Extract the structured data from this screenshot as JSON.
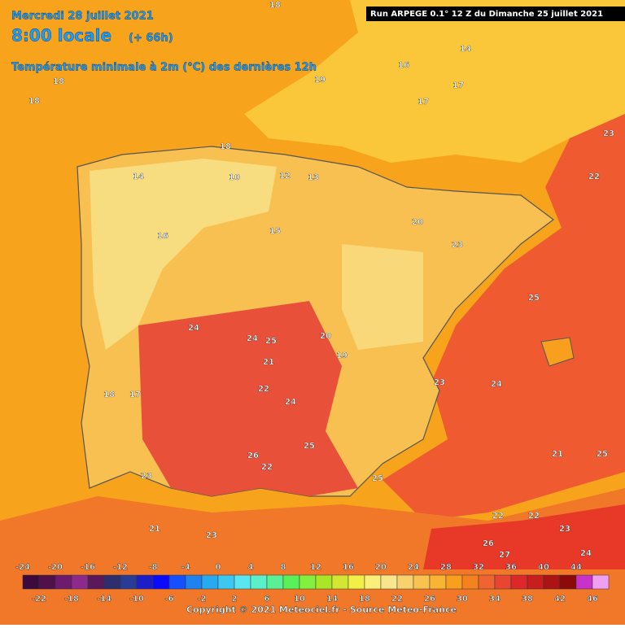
{
  "header": {
    "date": "Mercredi 28 juillet 2021",
    "time": "8:00 locale",
    "lead": "(+ 66h)",
    "parameter": "Température minimale à 2m (°C) des dernières 12h",
    "run": "Run ARPEGE 0.1° 12 Z du Dimanche 25 juillet 2021"
  },
  "map_labels": [
    "18",
    "18",
    "18",
    "19",
    "17",
    "14",
    "16",
    "17",
    "18",
    "14",
    "10",
    "13",
    "15",
    "12",
    "16",
    "20",
    "23",
    "23",
    "25",
    "22",
    "24",
    "24",
    "25",
    "21",
    "20",
    "19",
    "26",
    "23",
    "24",
    "25",
    "22",
    "18",
    "17",
    "21",
    "22",
    "23",
    "24",
    "22",
    "25",
    "21",
    "22",
    "23",
    "26",
    "24",
    "25",
    "27",
    "23"
  ],
  "colorbar": {
    "colors": [
      "#3c0a3c",
      "#50104a",
      "#6e1a6e",
      "#8c2a8c",
      "#5a1a5a",
      "#2e2e6e",
      "#283c96",
      "#1e1ec8",
      "#0a0aff",
      "#1450ff",
      "#1e82f0",
      "#28aaf0",
      "#3cc8f0",
      "#5ae6f0",
      "#5af0c8",
      "#5af096",
      "#5af05a",
      "#82f03c",
      "#aae628",
      "#d2e632",
      "#f0f046",
      "#f8f078",
      "#f8e68c",
      "#f8d26e",
      "#f8c350",
      "#f8b432",
      "#f8a01e",
      "#f5821e",
      "#f06432",
      "#e84632",
      "#dc2828",
      "#c81e1e",
      "#aa1414",
      "#8c0a0a",
      "#c832c8",
      "#f0a0f0"
    ],
    "start": -24,
    "step": 2,
    "top_labels": [
      -24,
      -20,
      -16,
      -12,
      -8,
      -4,
      0,
      4,
      8,
      12,
      16,
      20,
      24,
      28,
      32,
      36,
      40,
      44
    ],
    "bottom_labels": [
      -22,
      -18,
      -14,
      -10,
      -6,
      -2,
      2,
      6,
      10,
      14,
      18,
      22,
      26,
      30,
      34,
      38,
      42,
      46
    ]
  },
  "copyright": "Copyright © 2021 Meteociel.fr - Source Meteo-France"
}
